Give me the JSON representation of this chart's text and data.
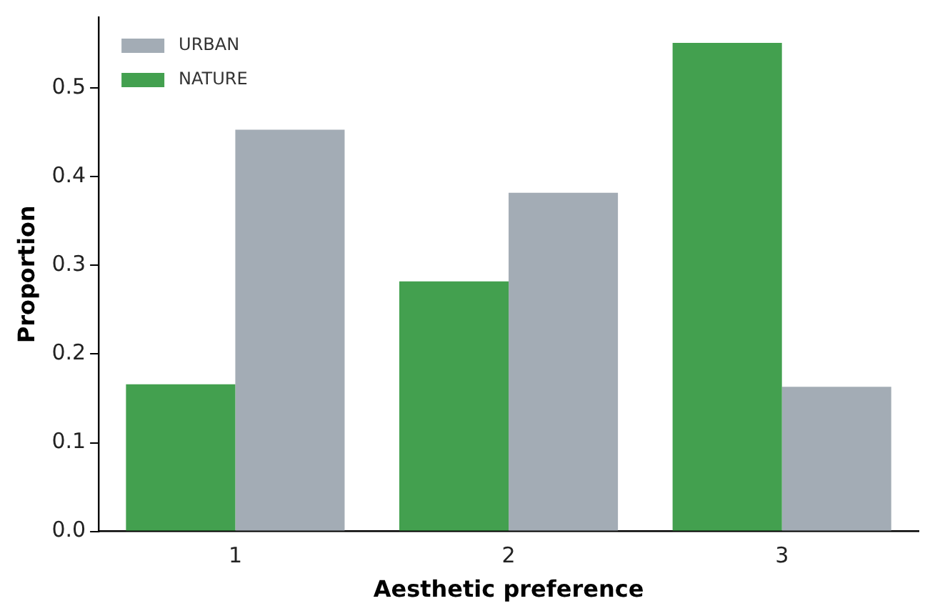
{
  "chart_data": {
    "type": "bar",
    "xlabel": "Aesthetic preference",
    "ylabel": "Proportion",
    "categories": [
      "1",
      "2",
      "3"
    ],
    "series": [
      {
        "name": "NATURE",
        "color": "#43a04f",
        "values": [
          0.166,
          0.282,
          0.551
        ]
      },
      {
        "name": "URBAN",
        "color": "#a3acb5",
        "values": [
          0.453,
          0.382,
          0.163
        ]
      }
    ],
    "ylim": [
      0,
      0.58
    ],
    "yticks": [
      {
        "value": 0,
        "label": "0.0"
      },
      {
        "value": 0.1,
        "label": "0.1"
      },
      {
        "value": 0.2,
        "label": "0.2"
      },
      {
        "value": 0.3,
        "label": "0.3"
      },
      {
        "value": 0.4,
        "label": "0.4"
      },
      {
        "value": 0.5,
        "label": "0.5"
      }
    ],
    "grid": false,
    "legend": "top left"
  }
}
